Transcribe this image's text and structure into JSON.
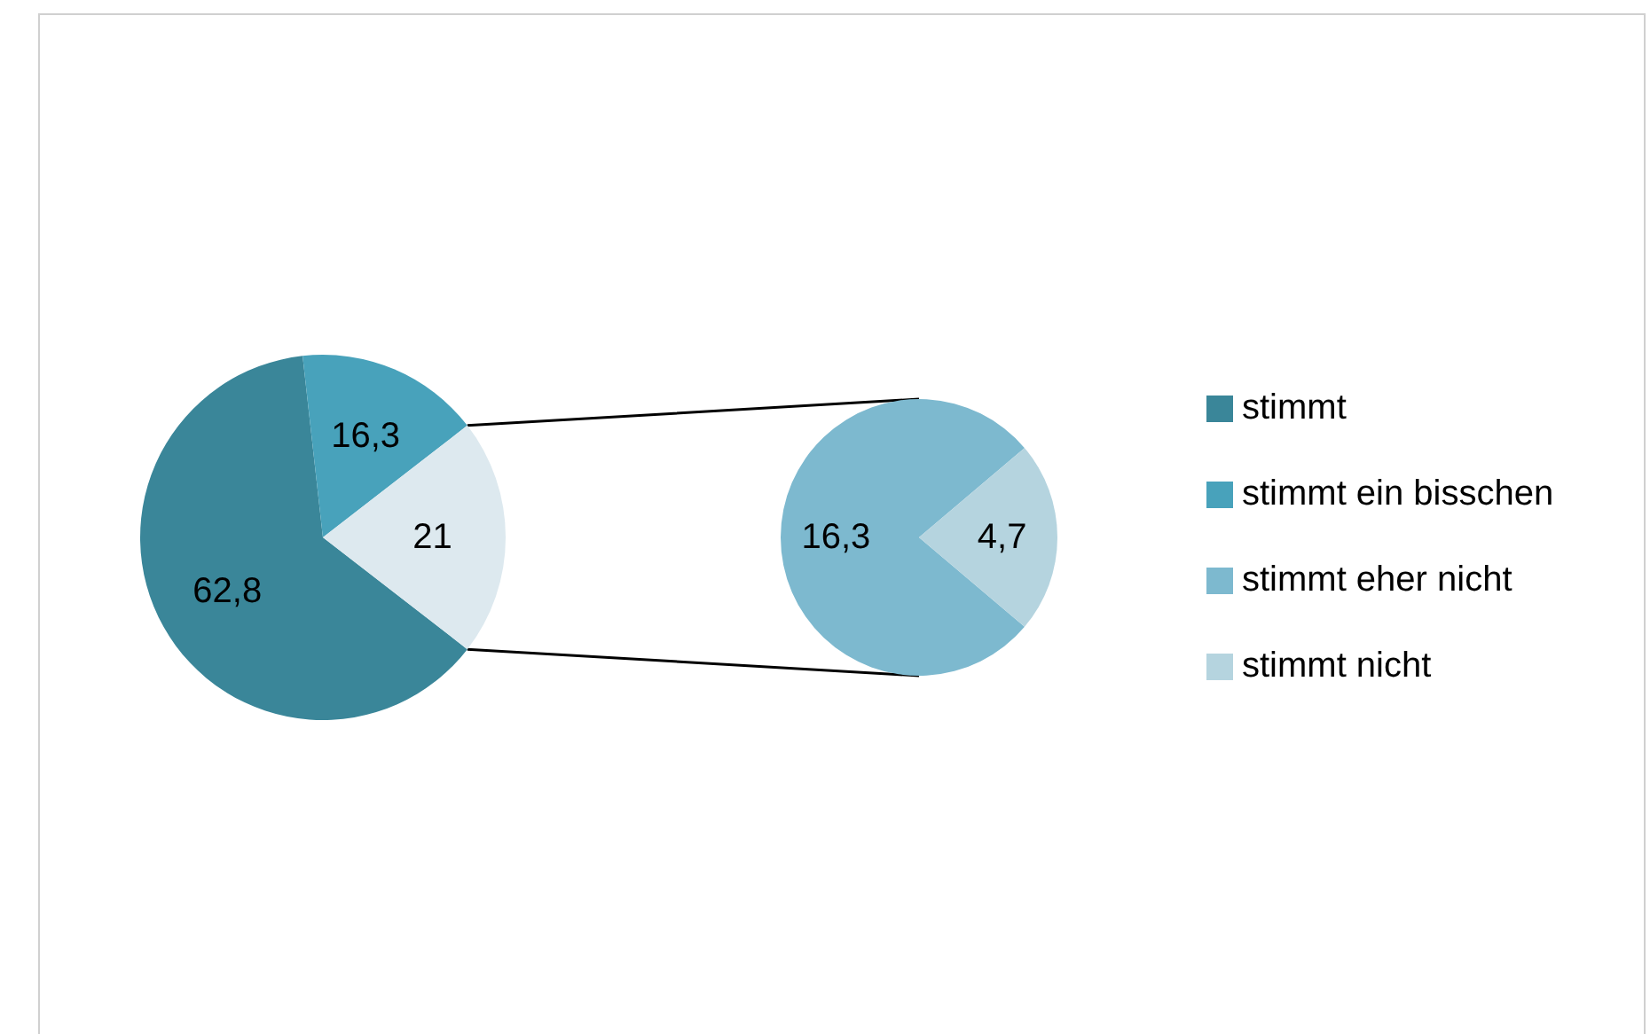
{
  "chart_data": [
    {
      "type": "pie",
      "categories": [
        "stimmt",
        "stimmt ein bisschen",
        null
      ],
      "values": [
        62.8,
        16.3,
        21
      ],
      "value_labels": [
        "62,8",
        "16,3",
        "21"
      ],
      "colors": [
        "#3a8699",
        "#48a2bb",
        "#dde9ef"
      ],
      "legend": "right"
    },
    {
      "type": "pie",
      "categories": [
        "stimmt eher nicht",
        "stimmt nicht"
      ],
      "values": [
        16.3,
        4.7
      ],
      "value_labels": [
        "16,3",
        "4,7"
      ],
      "colors": [
        "#7db9cf",
        "#b5d4df"
      ],
      "legend": "right"
    }
  ]
}
